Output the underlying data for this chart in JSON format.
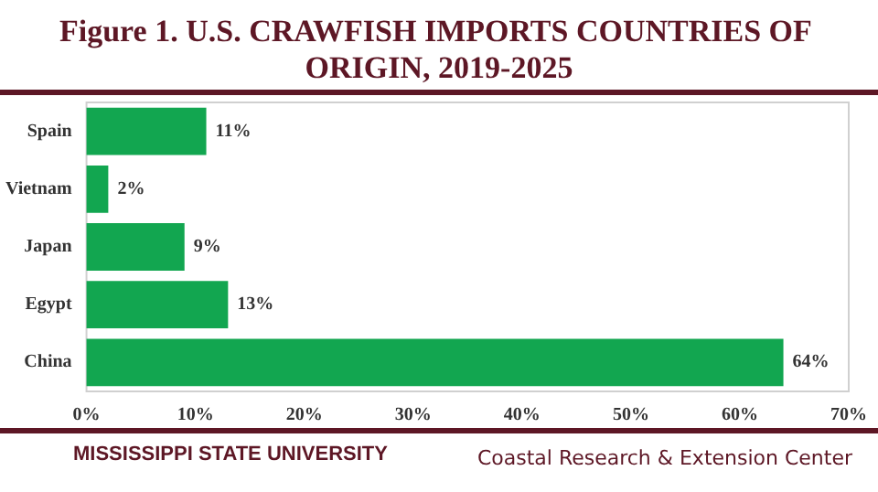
{
  "chart_data": {
    "type": "bar",
    "orientation": "horizontal",
    "title": "Figure 1. U.S. CRAWFISH IMPORTS COUNTRIES OF ORIGIN, 2019-2025",
    "categories": [
      "Spain",
      "Vietnam",
      "Japan",
      "Egypt",
      "China"
    ],
    "values": [
      11,
      2,
      9,
      13,
      64
    ],
    "value_labels": [
      "11%",
      "2%",
      "9%",
      "13%",
      "64%"
    ],
    "color": "#12a650",
    "xlim": [
      0,
      70
    ],
    "xticks": [
      {
        "value": 0,
        "label": "0%"
      },
      {
        "value": 10,
        "label": "10%"
      },
      {
        "value": 20,
        "label": "20%"
      },
      {
        "value": 30,
        "label": "30%"
      },
      {
        "value": 40,
        "label": "40%"
      },
      {
        "value": 50,
        "label": "50%"
      },
      {
        "value": 60,
        "label": "60%"
      },
      {
        "value": 70,
        "label": "70%"
      }
    ],
    "grid": false,
    "annotations": [
      "MISSISSIPPI STATE UNIVERSITY",
      "Coastal Research & Extension Center"
    ]
  }
}
